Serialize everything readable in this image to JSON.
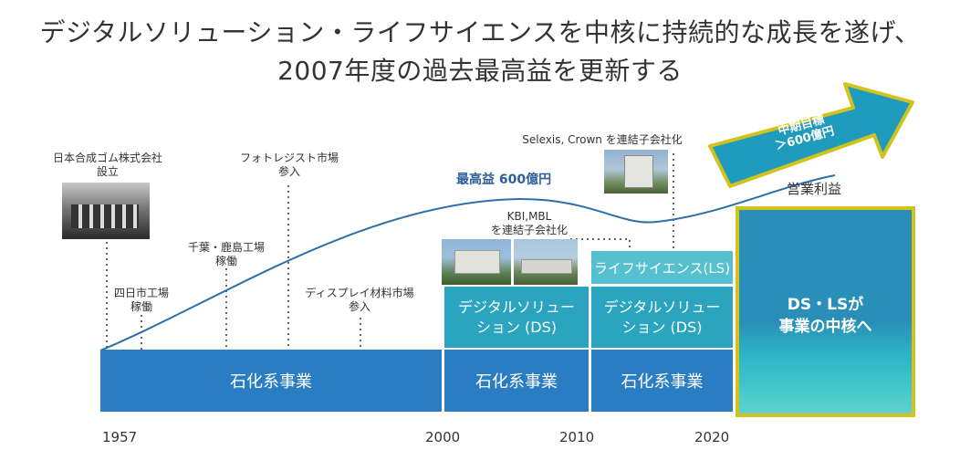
{
  "title_line1": "デジタルソリューション・ライフサイエンスを中核に持続的な成長を遂げ、",
  "title_line2": "2007年度の過去最高益を更新する",
  "milestones": {
    "gomu": "日本合成ゴム株式会社\n設立",
    "yokkaichi": "四日市工場\n稼働",
    "chiba": "千葉・鹿島工場\n稼働",
    "photoresist": "フォトレジスト市場\n参入",
    "display": "ディスプレイ材料市場\n参入",
    "kbi": "KBI,MBL\nを連結子会社化",
    "selexis": "Selexis, Crown を連結子会社化"
  },
  "record_profit": "最高益 600億円",
  "operating_profit": "営業利益",
  "target_arrow": "中期目標\n＞600億円",
  "bars": {
    "petro_1": "石化系事業",
    "petro_2": "石化系事業",
    "petro_3": "石化系事業",
    "ds_1": "デジタルソリュー\nション (DS)",
    "ds_2": "デジタルソリュー\nション (DS)",
    "ls": "ライフサイエンス(LS)",
    "future": "DS・LSが\n事業の中核へ"
  },
  "years": [
    "1957",
    "2000",
    "2010",
    "2020"
  ],
  "colors": {
    "petro": "#2a7cc3",
    "ds": "#2ba4c0",
    "ls": "#55c0cf",
    "future_border": "#d4c21c",
    "arrow_fill": "#1f9bbd",
    "curve": "#2d6fa8",
    "record_text": "#2d5f9a"
  }
}
